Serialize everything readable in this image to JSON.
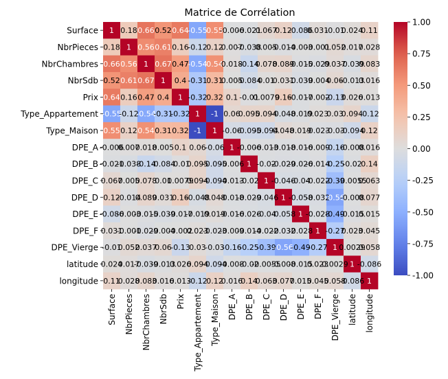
{
  "chart_data": {
    "type": "heatmap",
    "title": "Matrice de Corrélation",
    "variables": [
      "Surface",
      "NbrPieces",
      "NbrChambres",
      "NbrSdb",
      "Prix",
      "Type_Appartement",
      "Type_Maison",
      "DPE_A",
      "DPE_B",
      "DPE_C",
      "DPE_D",
      "DPE_E",
      "DPE_F",
      "DPE_Vierge",
      "latitude",
      "longitude"
    ],
    "values": [
      [
        1,
        0.18,
        0.66,
        0.52,
        0.64,
        -0.55,
        0.55,
        -0.006,
        -0.021,
        0.067,
        0.12,
        -0.086,
        0.031,
        -0.01,
        0.024,
        0.11
      ],
      [
        0.18,
        1,
        0.56,
        0.61,
        0.16,
        -0.12,
        0.12,
        0.007,
        -0.038,
        0.005,
        -0.014,
        -0.003,
        -0.001,
        0.052,
        0.017,
        0.028
      ],
      [
        0.66,
        0.56,
        1,
        0.67,
        0.47,
        -0.54,
        0.54,
        0.018,
        -0.14,
        0.078,
        0.089,
        -0.015,
        -0.029,
        0.037,
        -0.039,
        0.083
      ],
      [
        0.52,
        0.61,
        0.67,
        1,
        0.4,
        -0.31,
        0.31,
        0.005,
        -0.084,
        0.01,
        0.031,
        -0.039,
        -0.004,
        0.06,
        -0.013,
        0.016
      ],
      [
        0.64,
        0.16,
        0.47,
        0.4,
        1,
        -0.32,
        0.32,
        0.1,
        -0.01,
        0.0079,
        0.16,
        -0.017,
        -0.002,
        -0.13,
        0.026,
        0.013
      ],
      [
        -0.55,
        -0.12,
        -0.54,
        -0.31,
        -0.32,
        1,
        -1,
        0.06,
        0.095,
        0.094,
        -0.048,
        -0.019,
        0.023,
        0.03,
        0.094,
        -0.12
      ],
      [
        0.55,
        0.12,
        0.54,
        0.31,
        0.32,
        -1,
        1,
        -0.06,
        -0.095,
        -0.094,
        0.048,
        0.019,
        -0.023,
        -0.03,
        -0.094,
        0.12
      ],
      [
        -0.006,
        0.007,
        0.018,
        0.005,
        0.1,
        0.06,
        -0.06,
        1,
        -0.006,
        -0.013,
        -0.018,
        -0.016,
        -0.009,
        -0.16,
        -0.008,
        0.016
      ],
      [
        -0.021,
        -0.038,
        -0.14,
        -0.084,
        -0.01,
        0.095,
        -0.095,
        -0.006,
        1,
        -0.02,
        -0.029,
        -0.026,
        -0.014,
        -0.25,
        -0.02,
        0.14
      ],
      [
        0.067,
        0.005,
        0.078,
        0.01,
        0.0079,
        0.094,
        -0.094,
        -0.013,
        -0.02,
        1,
        -0.046,
        -0.04,
        -0.022,
        -0.39,
        -0.0055,
        0.063
      ],
      [
        0.12,
        -0.014,
        0.089,
        0.031,
        0.16,
        -0.048,
        0.048,
        -0.018,
        -0.029,
        -0.046,
        1,
        -0.058,
        -0.032,
        -0.56,
        -0.008,
        0.077
      ],
      [
        -0.086,
        -0.003,
        -0.015,
        -0.039,
        -0.017,
        -0.019,
        0.019,
        -0.016,
        -0.026,
        -0.04,
        -0.058,
        1,
        -0.028,
        -0.49,
        -0.015,
        0.015
      ],
      [
        0.031,
        -0.001,
        -0.029,
        -0.004,
        -0.002,
        0.023,
        -0.023,
        -0.009,
        -0.014,
        -0.022,
        -0.032,
        -0.028,
        1,
        -0.27,
        0.023,
        0.045
      ],
      [
        -0.01,
        0.052,
        0.037,
        0.06,
        -0.13,
        0.03,
        -0.03,
        -0.16,
        -0.25,
        -0.39,
        -0.56,
        -0.49,
        -0.27,
        1,
        0.0029,
        0.058
      ],
      [
        0.024,
        0.017,
        -0.039,
        -0.013,
        0.026,
        0.094,
        -0.094,
        -0.008,
        -0.02,
        -0.0055,
        -0.008,
        -0.015,
        0.023,
        0.0029,
        1,
        -0.086
      ],
      [
        0.11,
        0.028,
        0.083,
        0.016,
        0.013,
        -0.12,
        0.12,
        0.016,
        0.14,
        0.063,
        0.077,
        0.015,
        0.045,
        0.058,
        -0.086,
        1
      ]
    ],
    "vmin": -1,
    "vmax": 1,
    "colormap": "coolwarm",
    "colorbar_ticks": [
      "1.00",
      "0.75",
      "0.50",
      "0.25",
      "0.00",
      "-0.25",
      "-0.50",
      "-0.75",
      "-1.00"
    ],
    "colorbar_tick_values": [
      1,
      0.75,
      0.5,
      0.25,
      0,
      -0.25,
      -0.5,
      -0.75,
      -1
    ]
  }
}
